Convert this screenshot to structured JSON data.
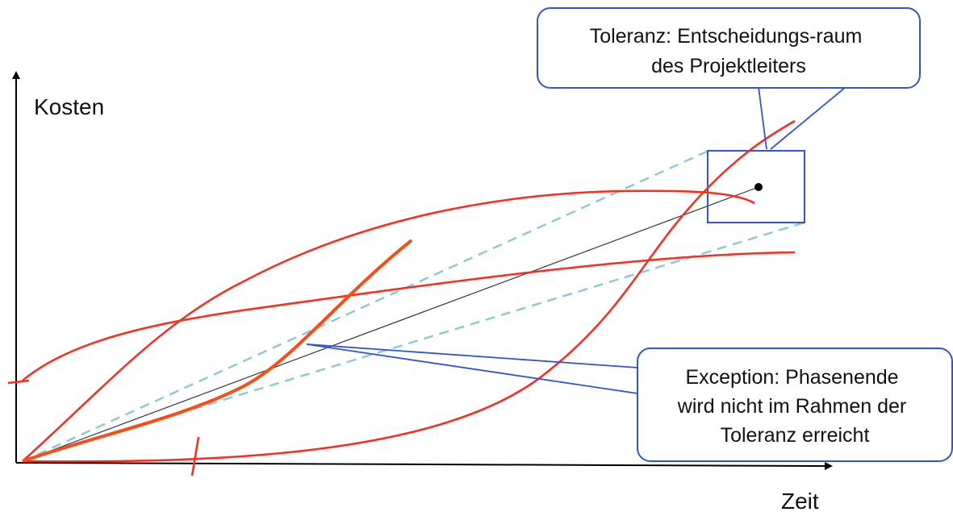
{
  "axes": {
    "y_label": "Kosten",
    "x_label": "Zeit"
  },
  "callouts": {
    "tolerance": {
      "lines": [
        "Toleranz: Entscheidungs-raum",
        "des Projektleiters"
      ]
    },
    "exception": {
      "lines": [
        "Exception: Phasenende",
        "wird nicht im Rahmen der",
        "Toleranz erreicht"
      ]
    }
  },
  "colors": {
    "axis": "#000000",
    "plan_line": "#333333",
    "tolerance_corridor": "#8ecad6",
    "deviation_curves": "#ff2a1a",
    "actual_curve": "#ff4a12",
    "callout_border": "#2f55d4",
    "tolerance_box": "#2f55d4"
  }
}
